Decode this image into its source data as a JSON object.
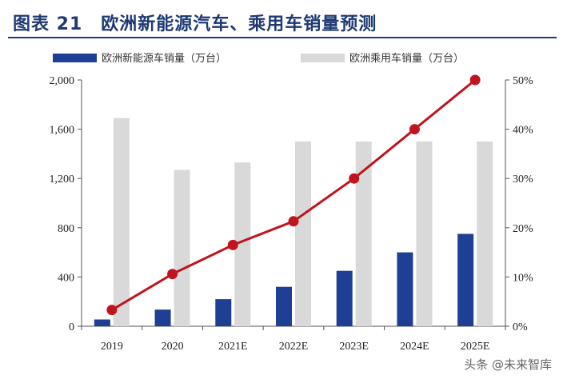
{
  "header": {
    "title": "图表 21　欧洲新能源汽车、乘用车销量预测"
  },
  "watermark": "头条 @未来智库",
  "colors": {
    "nev_bar": "#1f3f94",
    "pv_bar": "#d9d9d9",
    "line": "#c0141e",
    "title": "#1f3a73"
  },
  "chart_data": {
    "type": "bar",
    "categories": [
      "2019",
      "2020",
      "2021E",
      "2022E",
      "2023E",
      "2024E",
      "2025E"
    ],
    "series": [
      {
        "name": "欧洲新能源车销量（万台）",
        "type": "bar",
        "axis": "left",
        "values": [
          55,
          135,
          220,
          320,
          450,
          600,
          750
        ]
      },
      {
        "name": "欧洲乘用车销量（万台）",
        "type": "bar",
        "axis": "left",
        "values": [
          1690,
          1270,
          1330,
          1500,
          1500,
          1500,
          1500
        ]
      },
      {
        "name": "",
        "type": "line",
        "axis": "right",
        "values": [
          0.033,
          0.106,
          0.165,
          0.213,
          0.3,
          0.4,
          0.5
        ]
      }
    ],
    "ylim": [
      0,
      2000
    ],
    "yticks": [
      "0",
      "400",
      "800",
      "1,200",
      "1,600",
      "2,000"
    ],
    "y2lim": [
      0,
      0.5
    ],
    "y2ticks": [
      "0%",
      "10%",
      "20%",
      "30%",
      "40%",
      "50%"
    ],
    "legend": "top",
    "grid": false
  }
}
